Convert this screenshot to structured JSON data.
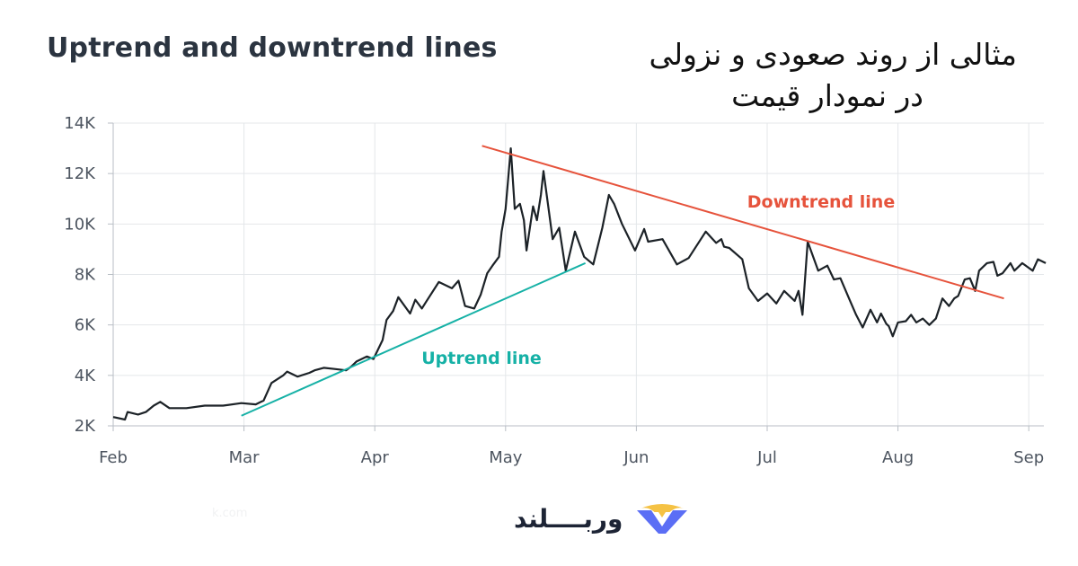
{
  "chart_data": {
    "type": "line",
    "title": "Uptrend and downtrend lines",
    "subtitle_fa_line1": "مثالی از روند صعودی و نزولی",
    "subtitle_fa_line2": "در نمودار قیمت",
    "xlabel": "",
    "ylabel": "",
    "x_tick_labels": [
      "Feb",
      "Mar",
      "Apr",
      "May",
      "Jun",
      "Jul",
      "Aug",
      "Sep"
    ],
    "y_tick_labels": [
      "2K",
      "4K",
      "6K",
      "8K",
      "10K",
      "12K",
      "14K"
    ],
    "y_ticks": [
      2000,
      4000,
      6000,
      8000,
      10000,
      12000,
      14000
    ],
    "ylim": [
      2000,
      14000
    ],
    "xlim_months": [
      0,
      7.15
    ],
    "grid": true,
    "series": [
      {
        "values_x_months": [
          0.0,
          0.09,
          0.11,
          0.19,
          0.25,
          0.31,
          0.36,
          0.43,
          0.45,
          0.56,
          0.7,
          0.84,
          0.98,
          1.09,
          1.13,
          1.15,
          1.21,
          1.3,
          1.33,
          1.41,
          1.5,
          1.54,
          1.61,
          1.7,
          1.78,
          1.82,
          1.86,
          1.94,
          1.99,
          2.06,
          2.09,
          2.14,
          2.18,
          2.27,
          2.31,
          2.36,
          2.39,
          2.49,
          2.59,
          2.64,
          2.69,
          2.76,
          2.81,
          2.86,
          2.9,
          2.95,
          2.97,
          3.0,
          3.04,
          3.07,
          3.11,
          3.14,
          3.16,
          3.21,
          3.24,
          3.27,
          3.29,
          3.36,
          3.41,
          3.46,
          3.53,
          3.6,
          3.67,
          3.74,
          3.79,
          3.83,
          3.89,
          3.99,
          4.06,
          4.09,
          4.2,
          4.31,
          4.4,
          4.53,
          4.61,
          4.65,
          4.67,
          4.71,
          4.81,
          4.86,
          4.93,
          5.0,
          5.07,
          5.13,
          5.17,
          5.21,
          5.24,
          5.27,
          5.31,
          5.39,
          5.46,
          5.51,
          5.56,
          5.63,
          5.68,
          5.73,
          5.79,
          5.84,
          5.87,
          5.91,
          5.93,
          5.96,
          6.0,
          6.06,
          6.1,
          6.14,
          6.19,
          6.24,
          6.29,
          6.34,
          6.39,
          6.43,
          6.46,
          6.51,
          6.55,
          6.59,
          6.62,
          6.68,
          6.73,
          6.76,
          6.8,
          6.86,
          6.89,
          6.95,
          7.03,
          7.07,
          7.13
        ],
        "values": [
          2350,
          2250,
          2550,
          2450,
          2550,
          2800,
          2950,
          2700,
          2700,
          2700,
          2800,
          2800,
          2900,
          2850,
          2950,
          3000,
          3700,
          4000,
          4150,
          3950,
          4100,
          4200,
          4300,
          4250,
          4200,
          4350,
          4550,
          4750,
          4650,
          5400,
          6200,
          6550,
          7100,
          6450,
          7000,
          6650,
          6900,
          7700,
          7450,
          7750,
          6750,
          6650,
          7200,
          8050,
          8350,
          8700,
          9700,
          10600,
          13000,
          10600,
          10800,
          10150,
          8950,
          10700,
          10150,
          11150,
          12100,
          9400,
          9850,
          8150,
          9700,
          8700,
          8400,
          9850,
          11150,
          10800,
          10000,
          8950,
          9800,
          9300,
          9400,
          8400,
          8650,
          9700,
          9250,
          9400,
          9100,
          9050,
          8600,
          7450,
          6950,
          7250,
          6850,
          7350,
          7150,
          6950,
          7350,
          6400,
          9300,
          8150,
          8350,
          7800,
          7850,
          7000,
          6400,
          5900,
          6600,
          6100,
          6450,
          6050,
          5950,
          5550,
          6100,
          6150,
          6400,
          6100,
          6250,
          6000,
          6250,
          7050,
          6750,
          7050,
          7150,
          7800,
          7850,
          7350,
          8150,
          8450,
          8500,
          7950,
          8050,
          8450,
          8150,
          8450,
          8150,
          8600,
          8450,
          8350,
          8450
        ],
        "color": "#1c2227"
      }
    ],
    "annotations": [
      {
        "label": "Uptrend line",
        "color": "#16b1a6",
        "from": {
          "x_months": 0.98,
          "y": 2400
        },
        "to": {
          "x_months": 3.61,
          "y": 8450
        }
      },
      {
        "label": "Downtrend line",
        "color": "#e6533c",
        "from": {
          "x_months": 2.82,
          "y": 13100
        },
        "to": {
          "x_months": 6.81,
          "y": 7050
        }
      }
    ]
  },
  "brand": {
    "name": "وربــــلند",
    "logo_colors": [
      "#f3b723",
      "#5b6ef5"
    ],
    "faint_url": "k.com"
  }
}
